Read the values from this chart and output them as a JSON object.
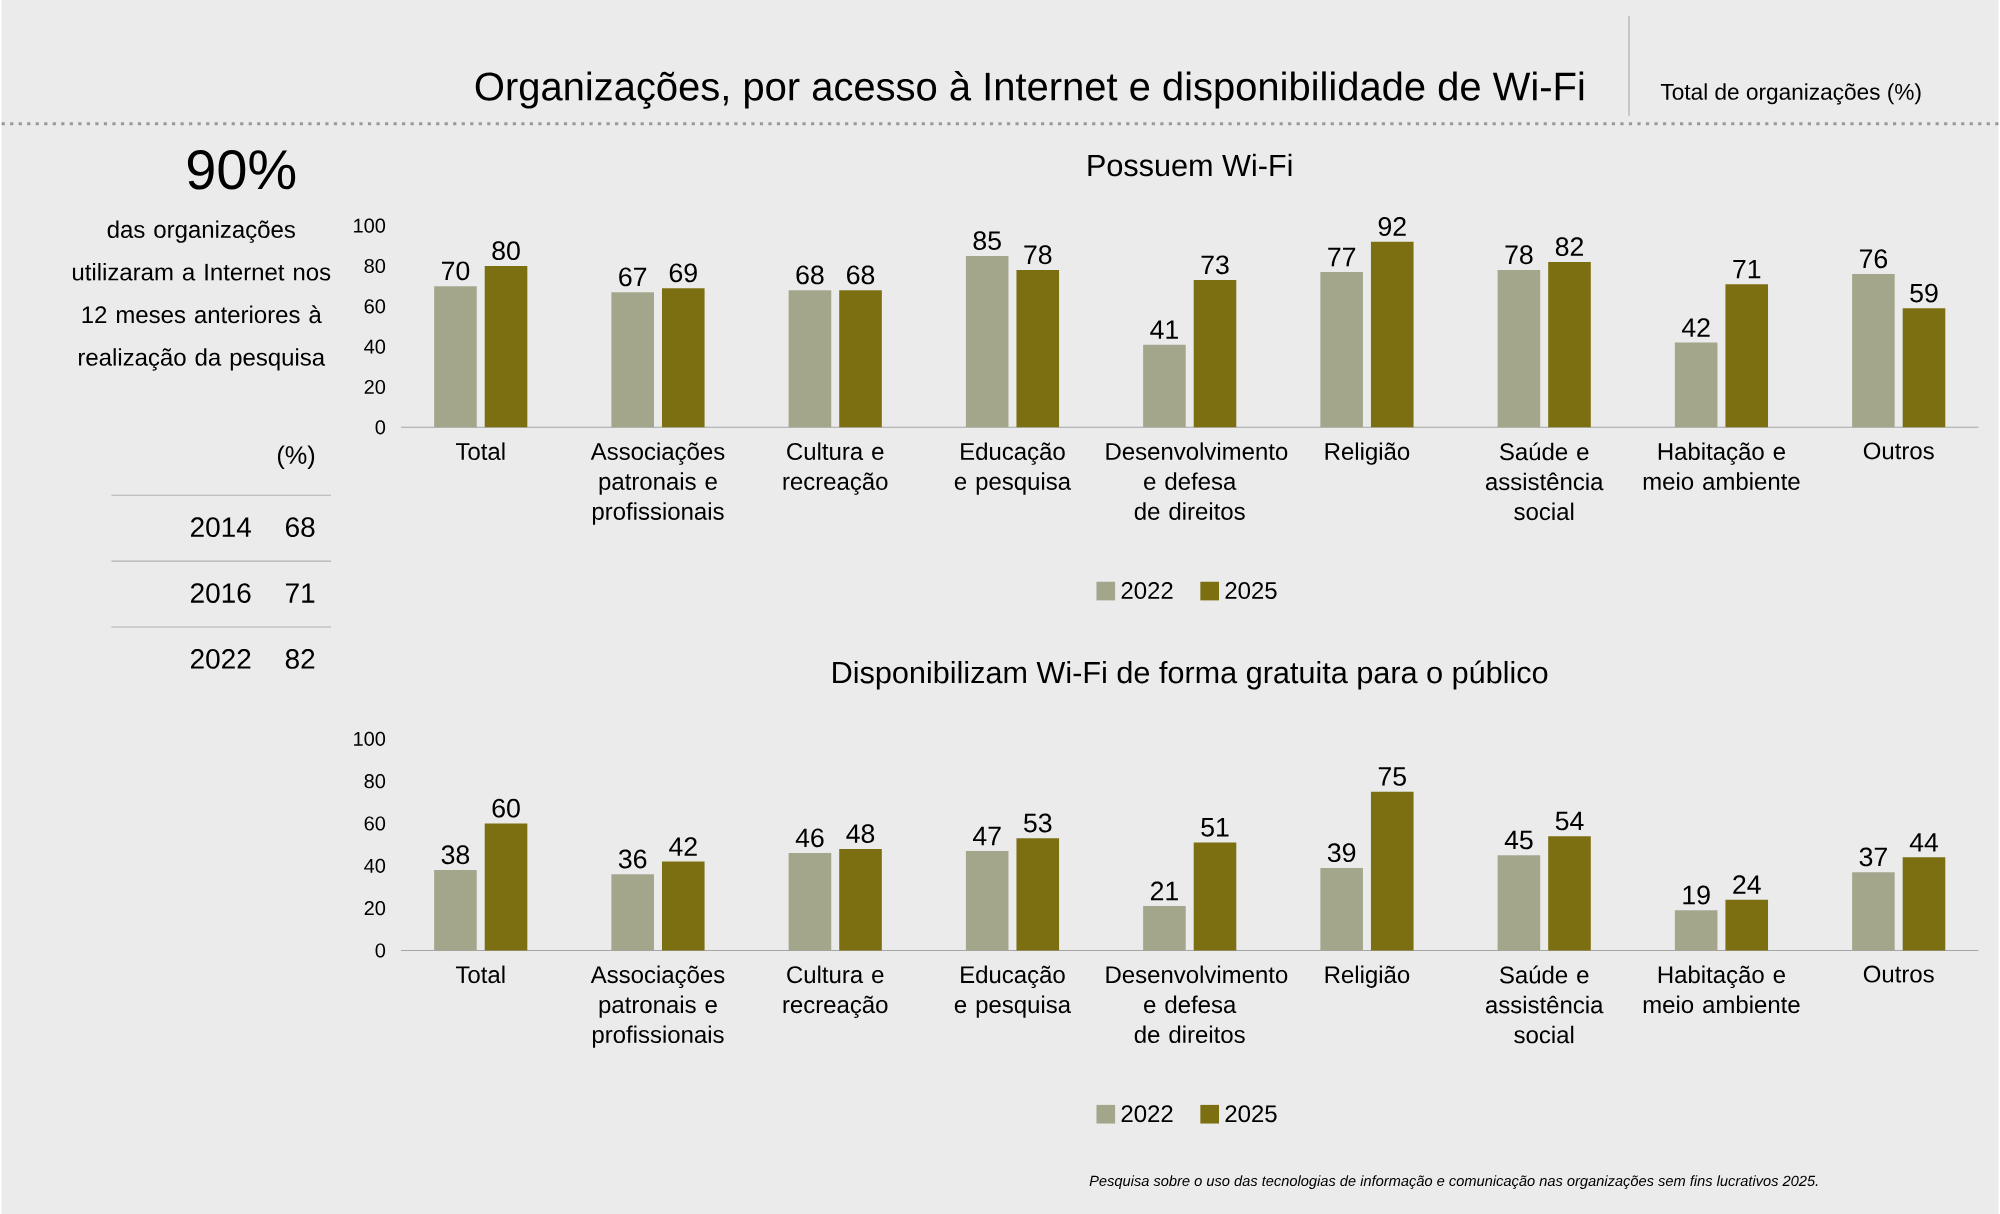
{
  "chart_data": [
    {
      "type": "other",
      "title": "Organizações, por acesso à Internet e disponibilidade de Wi-Fi",
      "subtitle": "Total de organizações (%)",
      "annotations": [
        "90%",
        "das organizações utilizaram a Internet nos 12 meses anteriores à realização da pesquisa",
        "(%)",
        "Pesquisa sobre o uso das tecnologias de informação e comunicação nas organizações sem fins lucrativos 2025."
      ],
      "categories": [
        "2014",
        "2016",
        "2022"
      ],
      "values": [
        68,
        71,
        82
      ],
      "data_labels": true
    },
    {
      "type": "bar",
      "title": "Possuem Wi-Fi",
      "categories": [
        "Total",
        "Associações patronais e profissionais",
        "Cultura e recreação",
        "Educação e pesquisa",
        "Desenvolvimento e defesa de direitos",
        "Religião",
        "Saúde e assistência social",
        "Habitação e meio ambiente",
        "Outros"
      ],
      "series": [
        {
          "name": "2022",
          "color": "#a4a68c",
          "values": [
            70,
            67,
            68,
            85,
            41,
            77,
            78,
            42,
            76
          ]
        },
        {
          "name": "2025",
          "color": "#7b6f11",
          "values": [
            80,
            69,
            68,
            78,
            73,
            92,
            82,
            71,
            59
          ]
        }
      ],
      "ylim": [
        0,
        100
      ],
      "yticks": [
        0,
        20,
        40,
        60,
        80,
        100
      ],
      "legend": "bottom",
      "data_labels": true
    },
    {
      "type": "bar",
      "title": "Disponibilizam Wi-Fi de forma gratuita para o público",
      "categories": [
        "Total",
        "Associações patronais e profissionais",
        "Cultura e recreação",
        "Educação e pesquisa",
        "Desenvolvimento e defesa de direitos",
        "Religião",
        "Saúde e assistência social",
        "Habitação e meio ambiente",
        "Outros"
      ],
      "series": [
        {
          "name": "2022",
          "color": "#a4a68c",
          "values": [
            38,
            36,
            46,
            47,
            21,
            39,
            45,
            19,
            37
          ]
        },
        {
          "name": "2025",
          "color": "#7b6f11",
          "values": [
            60,
            42,
            48,
            53,
            51,
            75,
            54,
            24,
            44
          ]
        }
      ],
      "ylim": [
        0,
        100
      ],
      "yticks": [
        0,
        20,
        40,
        60,
        80,
        100
      ],
      "legend": "bottom",
      "data_labels": true
    }
  ]
}
